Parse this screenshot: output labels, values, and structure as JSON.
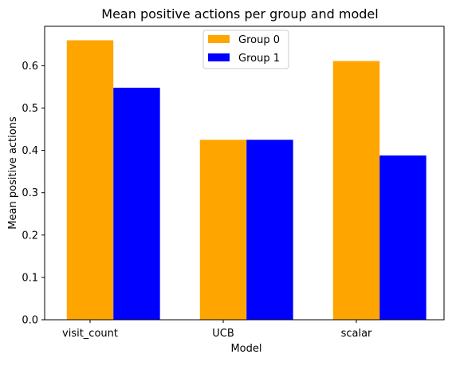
{
  "chart_data": {
    "type": "bar",
    "title": "Mean positive actions per group and model",
    "xlabel": "Model",
    "ylabel": "Mean positive actions",
    "categories": [
      "visit_count",
      "UCB",
      "scalar"
    ],
    "series": [
      {
        "name": "Group 0",
        "color": "#ffa500",
        "values": [
          0.66,
          0.425,
          0.611
        ]
      },
      {
        "name": "Group 1",
        "color": "#0000ff",
        "values": [
          0.548,
          0.425,
          0.388
        ]
      }
    ],
    "ylim": [
      0,
      0.693
    ],
    "yticks": [
      "0.0",
      "0.1",
      "0.2",
      "0.3",
      "0.4",
      "0.5",
      "0.6"
    ],
    "grid": false,
    "legend_position": "top-center"
  }
}
